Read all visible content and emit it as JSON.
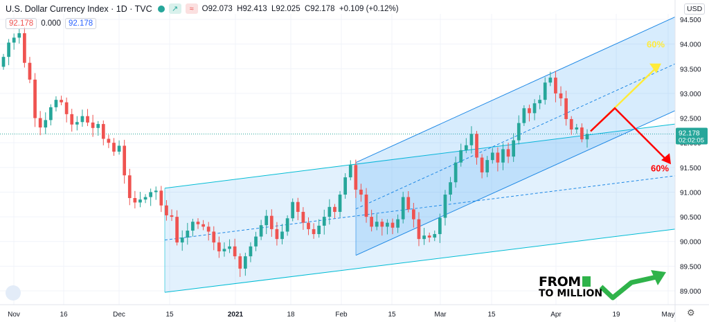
{
  "header": {
    "title": "U.S. Dollar Currency Index · 1D · TVC",
    "open": "O92.073",
    "high": "H92.413",
    "low": "L92.025",
    "close": "C92.178",
    "change": "+0.109 (+0.12%)",
    "chip_1": "↗",
    "chip_2": "≈"
  },
  "indicator": {
    "value_1": "92.178",
    "value_2": "0.000",
    "value_3": "92.178"
  },
  "currency": "USD",
  "price_tag": {
    "price": "92.178",
    "countdown": "02:02:05"
  },
  "annotations": {
    "up_pct": "60%",
    "down_pct": "60%"
  },
  "watermark": {
    "line1": "FROM",
    "line2": "TO MILLION"
  },
  "colors": {
    "up": "#26a69a",
    "down": "#ef5350",
    "channel": "#1e88e5",
    "arrow_up": "#ffeb3b",
    "arrow_down": "#ff0000"
  },
  "icons": {
    "logo": "tradingview-logo-icon",
    "settings": "gear-icon"
  },
  "chart_data": {
    "type": "candlestick",
    "symbol": "DXY",
    "timeframe": "1D",
    "ylim": [
      88.8,
      94.6
    ],
    "yticks": [
      "94.500",
      "94.000",
      "93.500",
      "93.000",
      "92.500",
      "92.000",
      "91.500",
      "91.000",
      "90.500",
      "90.000",
      "89.500",
      "89.000"
    ],
    "xticks": [
      "Nov",
      "16",
      "Dec",
      "15",
      "2021",
      "18",
      "Feb",
      "15",
      "Mar",
      "15",
      "Apr",
      "19",
      "May"
    ],
    "closes": [
      93.74,
      94.03,
      94.13,
      94.22,
      93.62,
      93.28,
      92.5,
      92.31,
      92.46,
      92.72,
      92.87,
      92.82,
      92.58,
      92.37,
      92.42,
      92.54,
      92.41,
      92.3,
      92.38,
      92.08,
      92.0,
      91.82,
      91.94,
      91.34,
      90.88,
      90.79,
      90.85,
      90.9,
      91.0,
      91.03,
      90.73,
      90.53,
      90.5,
      89.98,
      90.08,
      90.22,
      90.4,
      90.35,
      90.3,
      90.2,
      89.98,
      89.8,
      89.85,
      89.9,
      89.7,
      89.45,
      89.7,
      89.9,
      90.1,
      90.33,
      90.52,
      90.25,
      90.05,
      90.2,
      90.47,
      90.8,
      90.6,
      90.38,
      90.25,
      90.15,
      90.32,
      90.5,
      90.7,
      90.6,
      90.95,
      91.3,
      91.55,
      91.05,
      90.95,
      90.5,
      90.3,
      90.4,
      90.3,
      90.38,
      90.28,
      90.45,
      90.9,
      90.65,
      90.45,
      90.05,
      90.12,
      90.08,
      90.15,
      90.48,
      90.95,
      91.2,
      91.6,
      91.85,
      91.95,
      92.18,
      91.7,
      91.4,
      91.65,
      91.8,
      91.6,
      91.87,
      91.72,
      92.05,
      92.4,
      92.7,
      92.6,
      92.8,
      92.87,
      93.22,
      93.32,
      93.0,
      92.9,
      92.48,
      92.27,
      92.31,
      92.07,
      92.178
    ]
  }
}
